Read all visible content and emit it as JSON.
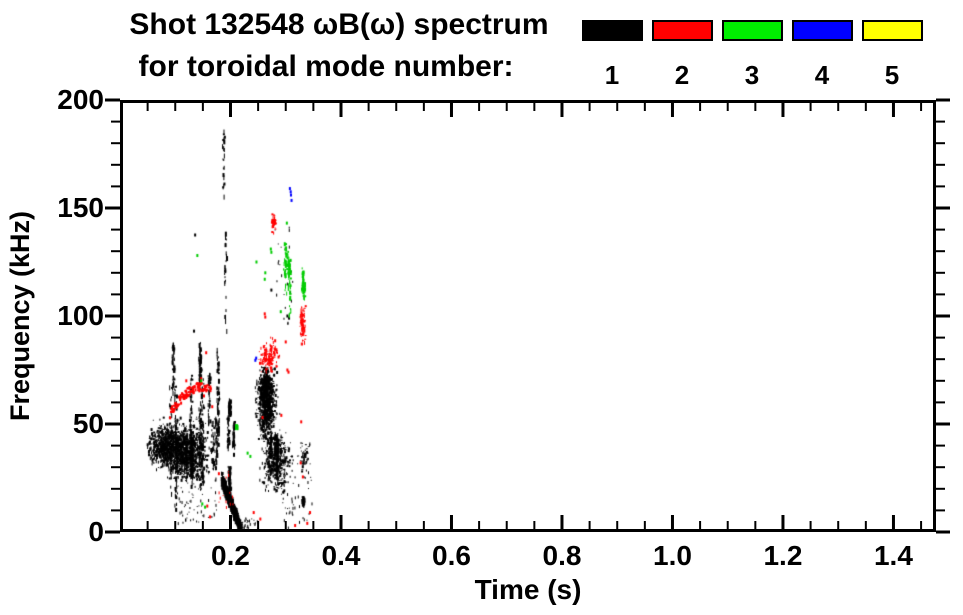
{
  "header": {
    "title_line1": "Shot 132548 ωB(ω) spectrum",
    "title_line2": "for toroidal mode number:"
  },
  "legend": {
    "items": [
      {
        "label": "1",
        "color": "#000000"
      },
      {
        "label": "2",
        "color": "#ff0000"
      },
      {
        "label": "3",
        "color": "#00ee00"
      },
      {
        "label": "4",
        "color": "#0000ff"
      },
      {
        "label": "5",
        "color": "#ffff00"
      }
    ]
  },
  "chart_data": {
    "type": "scatter",
    "title": "Shot 132548 ωB(ω) spectrum for toroidal mode number: 1 2 3 4 5",
    "xlabel": "Time (s)",
    "ylabel": "Frequency (kHz)",
    "xlim": [
      0,
      1.477
    ],
    "ylim": [
      0,
      200
    ],
    "grid": false,
    "frame_color": "#000000",
    "x_axis": {
      "major": [
        0.2,
        0.4,
        0.6,
        0.8,
        1.0,
        1.2,
        1.4
      ],
      "labels": [
        "0.2",
        "0.4",
        "0.6",
        "0.8",
        "1.0",
        "1.2",
        "1.4"
      ],
      "minor_step": 0.05
    },
    "y_axis": {
      "major": [
        0,
        50,
        100,
        150,
        200
      ],
      "labels": [
        "0",
        "50",
        "100",
        "150",
        "200"
      ],
      "minor_step": 10
    },
    "series": [
      {
        "name": "n=1",
        "mode": 1,
        "color": "#000000",
        "clusters": [
          {
            "shape": "gauss",
            "center": [
              0.085,
              40
            ],
            "sigma": [
              0.017,
              4.5
            ],
            "count": 900,
            "clamp": {
              "t": [
                0.048,
                0.16
              ],
              "f": [
                24,
                54
              ]
            }
          },
          {
            "shape": "gauss",
            "center": [
              0.121,
              37
            ],
            "sigma": [
              0.016,
              6.5
            ],
            "count": 900,
            "clamp": {
              "t": [
                0.055,
                0.165
              ],
              "f": [
                24,
                54
              ]
            }
          },
          {
            "shape": "streaks",
            "t": [
              0.08,
              0.178
            ],
            "f": [
              8,
              88
            ],
            "lines": 16,
            "count": 600
          },
          {
            "shape": "streaks",
            "t": [
              0.186,
              0.192
            ],
            "f": [
              88,
              197
            ],
            "lines": 2,
            "count": 45
          },
          {
            "shape": "streaks",
            "t": [
              0.19,
              0.222
            ],
            "f": [
              12,
              62
            ],
            "lines": 5,
            "count": 190
          },
          {
            "shape": "wedge",
            "from": [
              0.183,
              25
            ],
            "to": [
              0.218,
              2
            ],
            "width0": 7,
            "width1": 5,
            "count": 520
          },
          {
            "shape": "uniform",
            "t": [
              0.215,
              0.25
            ],
            "f": [
              0,
              7
            ],
            "count": 40
          },
          {
            "shape": "gauss",
            "center": [
              0.264,
              60
            ],
            "sigma": [
              0.0075,
              8
            ],
            "count": 850,
            "clamp": {
              "t": [
                0.243,
                0.289
              ],
              "f": [
                42,
                77
              ]
            }
          },
          {
            "shape": "gauss",
            "center": [
              0.262,
              68
            ],
            "sigma": [
              0.005,
              4
            ],
            "count": 220,
            "clamp": {
              "t": [
                0.245,
                0.285
              ],
              "f": [
                50,
                77
              ]
            }
          },
          {
            "shape": "gauss",
            "center": [
              0.282,
              33
            ],
            "sigma": [
              0.012,
              7
            ],
            "count": 420,
            "clamp": {
              "t": [
                0.252,
                0.318
              ],
              "f": [
                17,
                48
              ]
            }
          },
          {
            "shape": "streaks",
            "t": [
              0.26,
              0.312
            ],
            "f": [
              20,
              46
            ],
            "lines": 6,
            "count": 140
          },
          {
            "shape": "uniform",
            "t": [
              0.29,
              0.35
            ],
            "f": [
              2,
              42
            ],
            "count": 60
          },
          {
            "shape": "gauss",
            "center": [
              0.332,
              35
            ],
            "sigma": [
              0.004,
              3
            ],
            "count": 45,
            "clamp": {
              "t": [
                0.32,
                0.345
              ],
              "f": [
                26,
                42
              ]
            }
          },
          {
            "shape": "streaks",
            "t": [
              0.329,
              0.333
            ],
            "f": [
              6,
              17
            ],
            "lines": 1,
            "count": 25
          },
          {
            "shape": "uniform",
            "t": [
              0.275,
              0.312
            ],
            "f": [
              95,
              142
            ],
            "count": 26
          },
          {
            "shape": "uniform",
            "t": [
              0.1,
              0.175
            ],
            "f": [
              4,
              23
            ],
            "count": 60
          },
          {
            "shape": "points",
            "pts": [
              [
                0.136,
                137.5
              ],
              [
                0.134,
                93
              ],
              [
                0.274,
                112
              ],
              [
                0.303,
                100
              ],
              [
                0.306,
                99
              ],
              [
                0.197,
                58
              ],
              [
                0.2,
                60
              ]
            ]
          }
        ]
      },
      {
        "name": "n=2",
        "mode": 2,
        "color": "#ff0000",
        "clusters": [
          {
            "shape": "arc",
            "from": [
              0.088,
              55
            ],
            "to": [
              0.163,
              67
            ],
            "bend": 5,
            "jitter": 2,
            "count": 110
          },
          {
            "shape": "gauss",
            "center": [
              0.268,
              82
            ],
            "sigma": [
              0.008,
              3.5
            ],
            "count": 150,
            "clamp": {
              "t": [
                0.25,
                0.292
              ],
              "f": [
                74,
                91
              ]
            }
          },
          {
            "shape": "gauss",
            "center": [
              0.2775,
              143.5
            ],
            "sigma": [
              0.002,
              2
            ],
            "count": 55,
            "clamp": {
              "t": [
                0.272,
                0.283
              ],
              "f": [
                139,
                148
              ]
            }
          },
          {
            "shape": "gauss",
            "center": [
              0.3295,
              97
            ],
            "sigma": [
              0.0025,
              5
            ],
            "count": 95,
            "clamp": {
              "t": [
                0.323,
                0.336
              ],
              "f": [
                87,
                107
              ]
            }
          },
          {
            "shape": "uniform",
            "t": [
              0.178,
              0.205
            ],
            "f": [
              12,
              30
            ],
            "count": 14
          },
          {
            "shape": "points",
            "pts": [
              [
                0.156,
                83
              ],
              [
                0.167,
                58
              ],
              [
                0.179,
                27
              ],
              [
                0.242,
                9
              ],
              [
                0.254,
                6
              ],
              [
                0.262,
                101
              ],
              [
                0.263,
                99.5
              ],
              [
                0.292,
                54
              ],
              [
                0.258,
                53
              ],
              [
                0.303,
                75
              ],
              [
                0.305,
                74
              ],
              [
                0.328,
                51
              ],
              [
                0.327,
                32
              ],
              [
                0.331,
                25.5
              ],
              [
                0.339,
                4
              ],
              [
                0.344,
                9
              ],
              [
                0.317,
                3
              ],
              [
                0.12,
                70
              ],
              [
                0.147,
                71
              ],
              [
                0.152,
                63
              ],
              [
                0.158,
                12
              ],
              [
                0.163,
                7
              ],
              [
                0.3,
                88
              ],
              [
                0.287,
                81
              ]
            ]
          }
        ]
      },
      {
        "name": "n=3",
        "mode": 3,
        "color": "#00cc00",
        "clusters": [
          {
            "shape": "streaks",
            "t": [
              0.293,
              0.313
            ],
            "f": [
              97,
              141
            ],
            "lines": 5,
            "count": 90
          },
          {
            "shape": "streaks",
            "t": [
              0.327,
              0.333
            ],
            "f": [
              104,
              124
            ],
            "lines": 2,
            "count": 40
          },
          {
            "shape": "streaks",
            "t": [
              0.209,
              0.215
            ],
            "f": [
              44,
              50
            ],
            "lines": 1,
            "count": 16
          },
          {
            "shape": "points",
            "pts": [
              [
                0.14,
                128
              ],
              [
                0.147,
                70
              ],
              [
                0.236,
                35
              ],
              [
                0.231,
                36.5
              ],
              [
                0.149,
                13
              ],
              [
                0.154,
                11.5
              ],
              [
                0.263,
                120
              ],
              [
                0.262,
                117
              ],
              [
                0.291,
                102
              ],
              [
                0.247,
                125
              ],
              [
                0.273,
                131
              ],
              [
                0.274,
                129.5
              ],
              [
                0.302,
                143
              ]
            ]
          }
        ]
      },
      {
        "name": "n=4",
        "mode": 4,
        "color": "#0000ff",
        "clusters": [
          {
            "shape": "points",
            "pts": [
              [
                0.3075,
                159
              ],
              [
                0.3095,
                156
              ],
              [
                0.3105,
                153.5
              ],
              [
                0.309,
                157.5
              ],
              [
                0.245,
                79.5
              ],
              [
                0.2465,
                80.5
              ]
            ]
          }
        ]
      },
      {
        "name": "n=5",
        "mode": 5,
        "color": "#ffff00",
        "clusters": []
      }
    ]
  }
}
